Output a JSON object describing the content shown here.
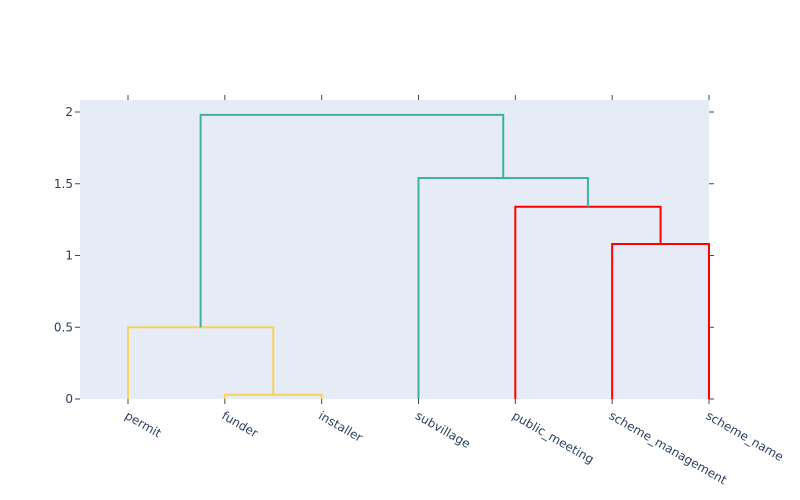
{
  "chart_data": {
    "type": "dendrogram",
    "title": "",
    "xlabel": "",
    "ylabel": "",
    "ylim": [
      0,
      2.08
    ],
    "yticks": [
      0,
      0.5,
      1,
      1.5,
      2
    ],
    "ytick_labels": [
      "0",
      "0.5",
      "1",
      "1.5",
      "2"
    ],
    "leaves": [
      "permit",
      "funder",
      "installer",
      "subvillage",
      "public_meeting",
      "scheme_management",
      "scheme_name"
    ],
    "links": [
      {
        "left": "funder",
        "right": "installer",
        "height": 0.03,
        "color": "#f5d35e"
      },
      {
        "left": "permit",
        "right": "funder+installer",
        "height": 0.5,
        "color": "#f5d35e"
      },
      {
        "left": "scheme_management",
        "right": "scheme_name",
        "height": 1.08,
        "color": "#ff0000"
      },
      {
        "left": "public_meeting",
        "right": "scheme_management+scheme_name",
        "height": 1.34,
        "color": "#ff0000"
      },
      {
        "left": "subvillage",
        "right": "public_meeting+scheme_management+scheme_name",
        "height": 1.54,
        "color": "#3fb1a0"
      },
      {
        "left": "permit+funder+installer",
        "right": "subvillage+public_meeting+scheme_management+scheme_name",
        "height": 1.98,
        "color": "#3fb1a0"
      }
    ],
    "grid": false,
    "legend": false
  },
  "colors": {
    "plot_bg": "#e5ecf6",
    "cluster_yellow": "#f5d35e",
    "cluster_red": "#ff0000",
    "cluster_teal": "#3fb1a0",
    "tick_text": "#2a3f5f",
    "tick_mark": "#444444"
  }
}
